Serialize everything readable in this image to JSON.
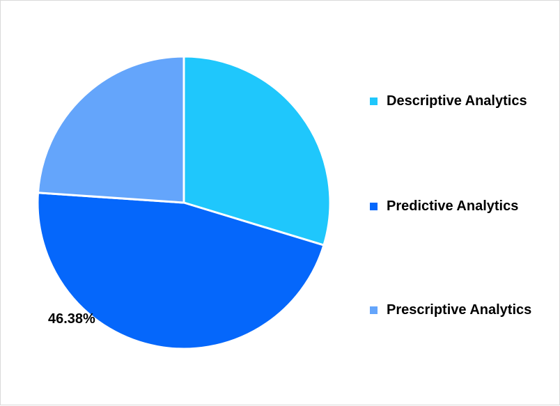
{
  "chart_data": {
    "type": "pie",
    "title": "",
    "slices": [
      {
        "label": "Descriptive Analytics",
        "value": 29.7,
        "color": "#1fc7fc"
      },
      {
        "label": "Predictive Analytics",
        "value": 46.38,
        "color": "#0567fb",
        "data_label": "46.38%"
      },
      {
        "label": "Prescriptive Analytics",
        "value": 23.92,
        "color": "#64a5fb"
      }
    ],
    "legend_position": "right",
    "start_angle_deg": 0,
    "direction": "clockwise"
  }
}
